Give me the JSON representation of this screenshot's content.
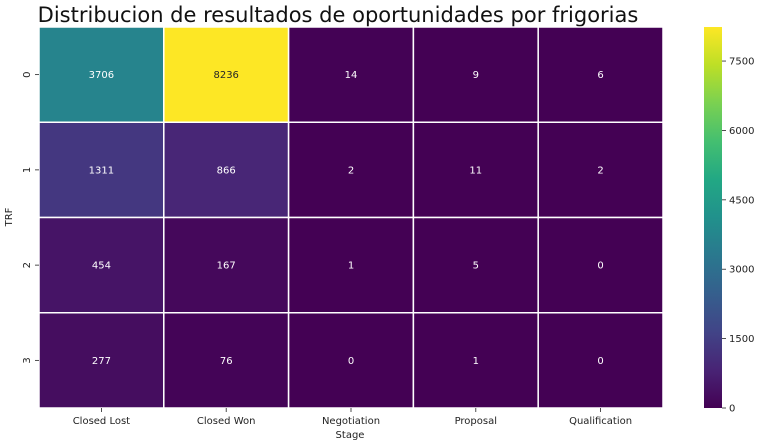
{
  "chart_data": {
    "type": "heatmap",
    "title": "Distribucion de resultados de oportunidades por frigorias",
    "xlabel": "Stage",
    "ylabel": "TRF",
    "x_categories": [
      "Closed Lost",
      "Closed Won",
      "Negotiation",
      "Proposal",
      "Qualification"
    ],
    "y_categories": [
      "0",
      "1",
      "2",
      "3"
    ],
    "values": [
      [
        3706,
        8236,
        14,
        9,
        6
      ],
      [
        1311,
        866,
        2,
        11,
        2
      ],
      [
        454,
        167,
        1,
        5,
        0
      ],
      [
        277,
        76,
        0,
        1,
        0
      ]
    ],
    "colormap": "viridis",
    "vmin": 0,
    "vmax": 8236,
    "colorbar_ticks": [
      0,
      1500,
      3000,
      4500,
      6000,
      7500
    ],
    "cell_separator_color": "#ffffff",
    "annotation_light_color": "#ffffff",
    "annotation_dark_color": "#262626"
  }
}
